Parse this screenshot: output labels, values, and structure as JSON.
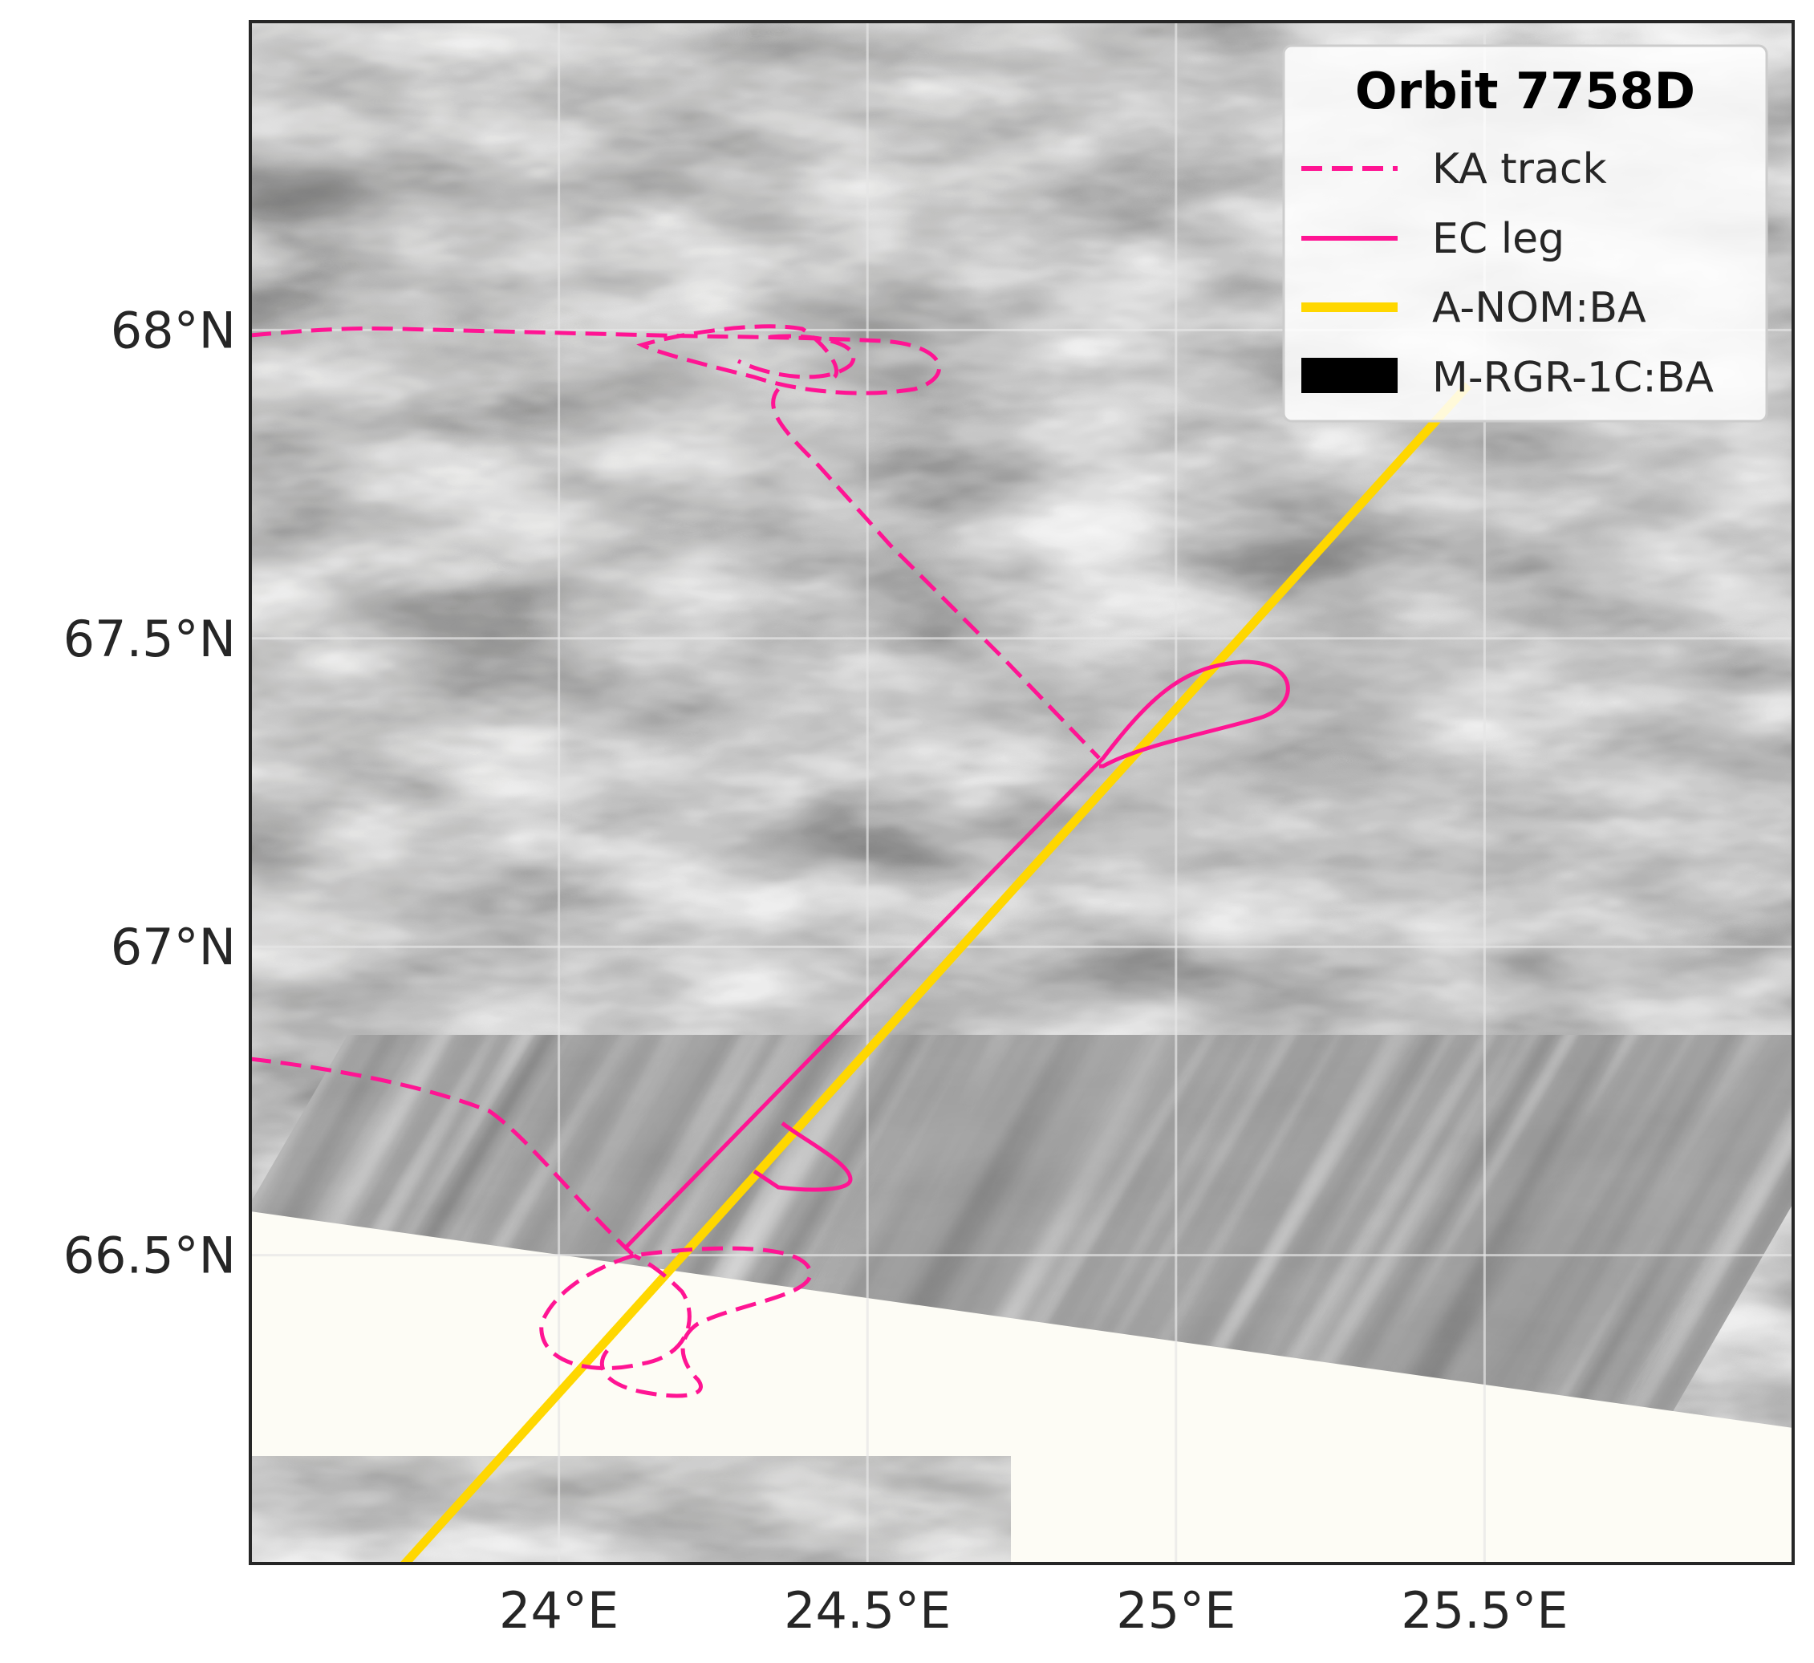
{
  "map": {
    "lon_range": [
      23.5,
      26.0
    ],
    "lat_range": [
      66.0,
      68.5
    ],
    "gridlines": true,
    "x_ticks": [
      {
        "value": 24.0,
        "label": "24°E"
      },
      {
        "value": 24.5,
        "label": "24.5°E"
      },
      {
        "value": 25.0,
        "label": "25°E"
      },
      {
        "value": 25.5,
        "label": "25.5°E"
      }
    ],
    "y_ticks": [
      {
        "value": 68.0,
        "label": "68°N"
      },
      {
        "value": 67.5,
        "label": "67.5°N"
      },
      {
        "value": 67.0,
        "label": "67°N"
      },
      {
        "value": 66.5,
        "label": "66.5°N"
      }
    ],
    "colors": {
      "background": "#fdfcf5",
      "ka_track": "#ff1493",
      "ec_leg": "#ff1493",
      "a_nom": "#ffd700",
      "m_rgr": "#000000",
      "frame": "#262626",
      "grid": "#e6e6e6"
    }
  },
  "legend": {
    "position": "top-right",
    "title": "Orbit 7758D",
    "entries": [
      {
        "label": "KA track",
        "style": "dashed-line",
        "color": "#ff1493"
      },
      {
        "label": "EC leg",
        "style": "solid-line",
        "color": "#ff1493"
      },
      {
        "label": "A-NOM:BA",
        "style": "thick-line",
        "color": "#ffd700"
      },
      {
        "label": "M-RGR-1C:BA",
        "style": "filled-patch",
        "color": "#000000"
      }
    ]
  },
  "chart_data": {
    "type": "line",
    "title": "",
    "xlabel": "",
    "ylabel": "",
    "xlim": [
      23.5,
      26.0
    ],
    "ylim": [
      66.0,
      68.5
    ],
    "series": [
      {
        "name": "A-NOM:BA",
        "x": [
          23.74,
          23.9,
          24.1,
          24.3,
          24.5,
          24.7,
          24.9,
          25.1,
          25.3,
          25.47
        ],
        "y": [
          66.0,
          66.2,
          66.43,
          66.66,
          66.89,
          67.1,
          67.31,
          67.51,
          67.71,
          67.87
        ]
      },
      {
        "name": "EC leg",
        "x": [
          24.12,
          24.3,
          24.5,
          24.7,
          24.88,
          24.95,
          25.05,
          25.12,
          25.18,
          25.15,
          25.05,
          24.95,
          24.88
        ],
        "y": [
          66.48,
          66.68,
          66.9,
          67.12,
          67.3,
          67.38,
          67.44,
          67.45,
          67.42,
          67.37,
          67.33,
          67.3,
          67.29
        ]
      },
      {
        "name": "KA track",
        "x": [
          23.5,
          23.8,
          24.2,
          24.5,
          24.62,
          24.7,
          24.55,
          24.4,
          24.3,
          24.35,
          24.5,
          24.65,
          24.8,
          24.88
        ],
        "y": [
          68.0,
          68.01,
          68.0,
          67.98,
          67.95,
          67.92,
          67.95,
          67.98,
          67.96,
          67.85,
          67.7,
          67.55,
          67.41,
          67.31
        ]
      }
    ]
  }
}
